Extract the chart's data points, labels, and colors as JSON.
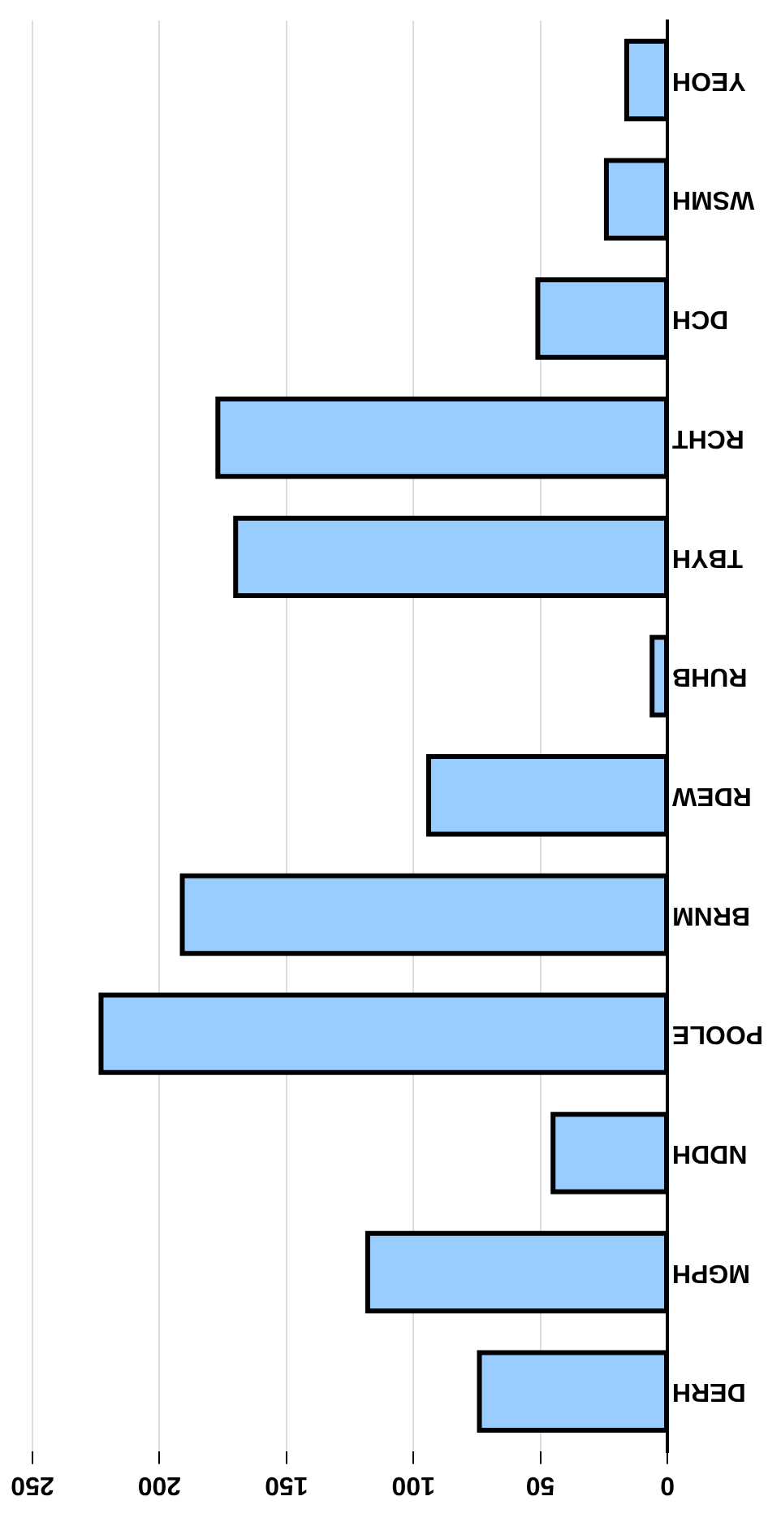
{
  "chart_data": {
    "type": "bar",
    "orientation": "horizontal",
    "categories": [
      "YEOH",
      "WSMH",
      "DCH",
      "RCHT",
      "TBYH",
      "RUHB",
      "RDEW",
      "BRNM",
      "POOLE",
      "NDDH",
      "MGPH",
      "DERH"
    ],
    "values": [
      16,
      24,
      51,
      177,
      170,
      6,
      94,
      191,
      223,
      45,
      118,
      74
    ],
    "color": "#99ccff",
    "xlim": [
      250,
      0
    ],
    "xticks": [
      250,
      200,
      150,
      100,
      50,
      0
    ],
    "grid": "x",
    "legend": false
  }
}
